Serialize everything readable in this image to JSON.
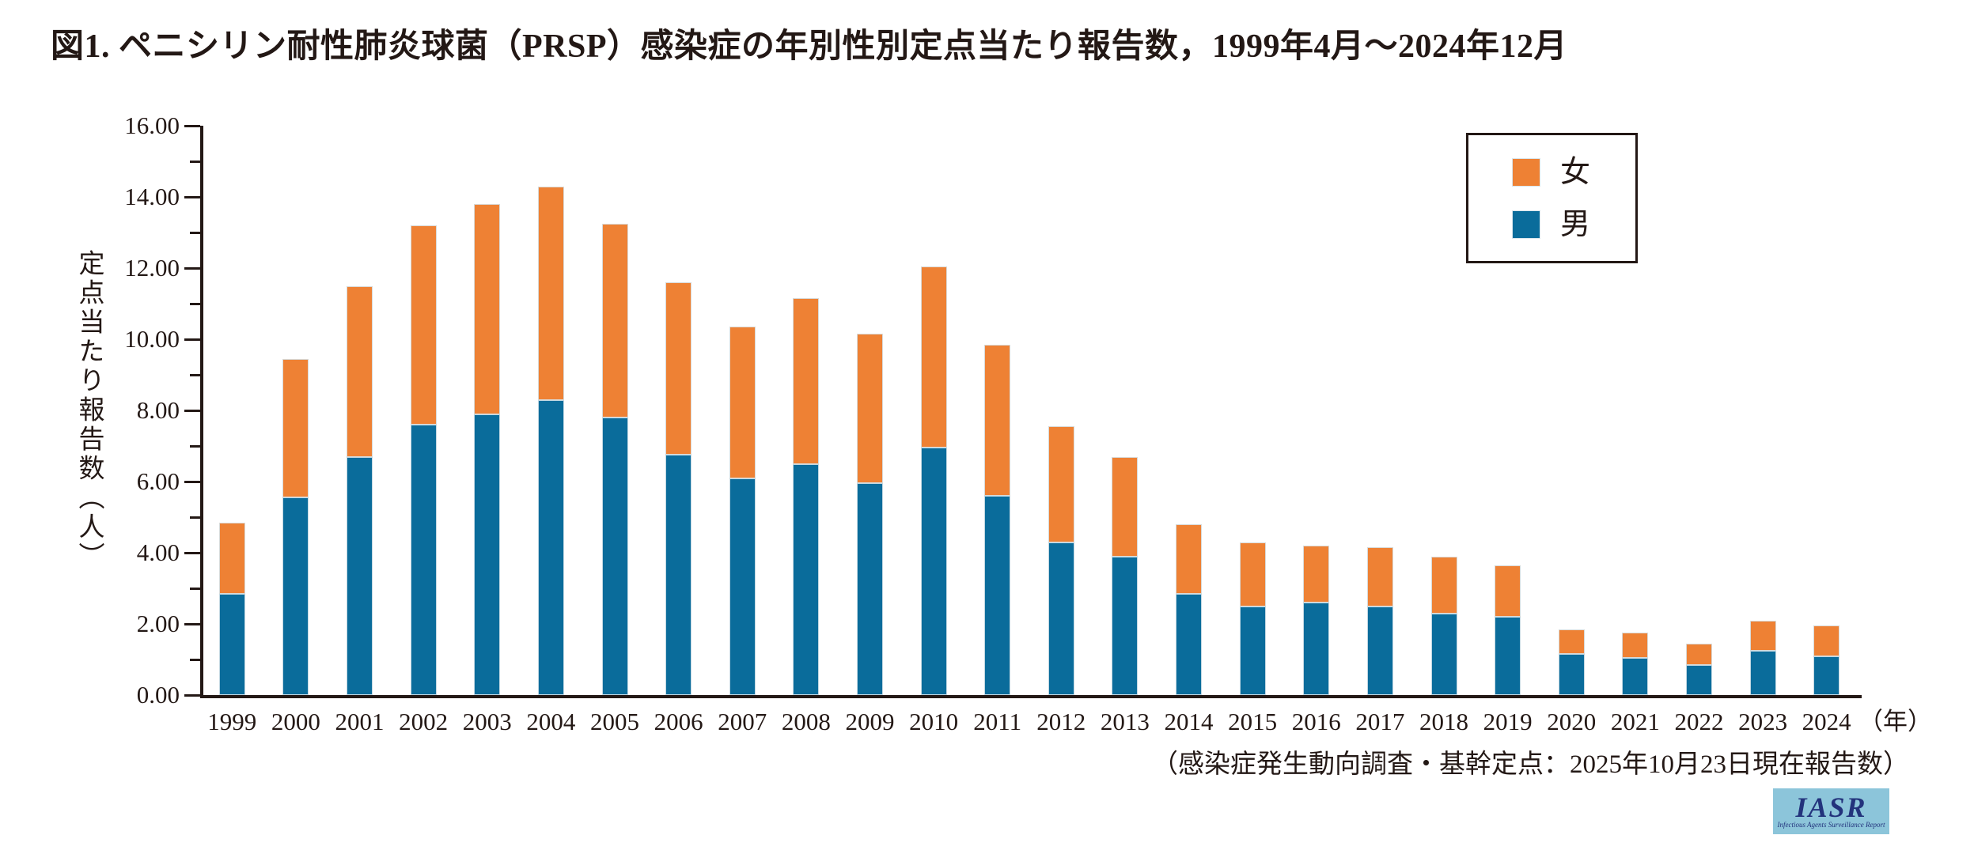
{
  "title": "図1. ペニシリン耐性肺炎球菌（PRSP）感染症の年別性別定点当たり報告数，1999年4月～2024年12月",
  "y_axis": {
    "label": "定点当たり報告数（人）",
    "tick_labels": [
      "0.00",
      "2.00",
      "4.00",
      "6.00",
      "8.00",
      "10.00",
      "12.00",
      "14.00",
      "16.00"
    ],
    "major_step": 2,
    "minor_step": 1
  },
  "x_axis": {
    "unit_label": "（年）"
  },
  "legend": {
    "items": [
      {
        "label": "女",
        "color": "#EE8134"
      },
      {
        "label": "男",
        "color": "#0A6C9B"
      }
    ]
  },
  "footer_note": "（感染症発生動向調査・基幹定点：2025年10月23日現在報告数）",
  "logo": {
    "text": "IASR",
    "subtext": "Infectious Agents Surveillance Report",
    "background": "#8CC5DA",
    "text_color": "#23337C"
  },
  "colors": {
    "axis_and_text": "#231815",
    "male_bar": "#0A6C9B",
    "female_bar": "#EE8134",
    "background": "#ffffff"
  },
  "chart_data": {
    "type": "bar",
    "stacked": true,
    "title": "図1. ペニシリン耐性肺炎球菌（PRSP）感染症の年別性別定点当たり報告数，1999年4月～2024年12月",
    "xlabel": "年",
    "ylabel": "定点当たり報告数（人）",
    "ylim": [
      0,
      16
    ],
    "grid": false,
    "legend_position": "top-right",
    "categories": [
      "1999",
      "2000",
      "2001",
      "2002",
      "2003",
      "2004",
      "2005",
      "2006",
      "2007",
      "2008",
      "2009",
      "2010",
      "2011",
      "2012",
      "2013",
      "2014",
      "2015",
      "2016",
      "2017",
      "2018",
      "2019",
      "2020",
      "2021",
      "2022",
      "2023",
      "2024"
    ],
    "series": [
      {
        "name": "男",
        "color": "#0A6C9B",
        "values": [
          2.85,
          5.55,
          6.7,
          7.6,
          7.9,
          8.3,
          7.8,
          6.75,
          6.1,
          6.5,
          5.95,
          6.95,
          5.6,
          4.3,
          3.9,
          2.85,
          2.5,
          2.6,
          2.5,
          2.3,
          2.2,
          1.15,
          1.05,
          0.85,
          1.25,
          1.1
        ]
      },
      {
        "name": "女",
        "color": "#EE8134",
        "values": [
          2.0,
          3.9,
          4.8,
          5.6,
          5.9,
          6.0,
          5.45,
          4.85,
          4.25,
          4.65,
          4.2,
          5.1,
          4.25,
          3.25,
          2.8,
          1.95,
          1.8,
          1.6,
          1.65,
          1.6,
          1.45,
          0.7,
          0.7,
          0.6,
          0.85,
          0.85
        ]
      }
    ],
    "totals": [
      4.85,
      9.45,
      11.5,
      13.2,
      13.8,
      14.3,
      13.25,
      11.6,
      10.35,
      11.15,
      10.15,
      12.05,
      9.85,
      7.55,
      6.7,
      4.8,
      4.3,
      4.2,
      4.15,
      3.9,
      3.65,
      1.85,
      1.75,
      1.45,
      2.1,
      1.95
    ]
  }
}
